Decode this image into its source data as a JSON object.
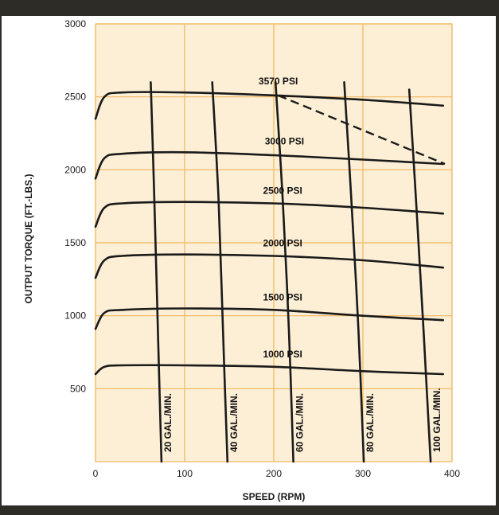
{
  "chart_data": {
    "type": "line",
    "title": "",
    "xlabel": "SPEED (RPM)",
    "ylabel": "OUTPUT TORQUE (FT.-LBS.)",
    "xlim": [
      0,
      400
    ],
    "ylim": [
      0,
      3000
    ],
    "x_ticks": [
      0,
      100,
      200,
      300,
      400
    ],
    "y_ticks": [
      500,
      1000,
      1500,
      2000,
      2500,
      3000
    ],
    "grid": true,
    "colors": {
      "plot_bg": "#fcefd6",
      "grid": "#f0b75e",
      "curve": "#1a1a1a",
      "frame_bg": "#2e2c26"
    },
    "pressure_series": [
      {
        "name": "3570 PSI",
        "x": [
          0,
          10,
          30,
          100,
          200,
          300,
          390
        ],
        "y": [
          2350,
          2500,
          2530,
          2530,
          2510,
          2480,
          2440
        ]
      },
      {
        "name": "3000 PSI",
        "x": [
          0,
          10,
          30,
          100,
          200,
          300,
          390
        ],
        "y": [
          1940,
          2080,
          2110,
          2120,
          2100,
          2070,
          2040
        ]
      },
      {
        "name": "2500 PSI",
        "x": [
          0,
          10,
          30,
          100,
          200,
          300,
          390
        ],
        "y": [
          1610,
          1740,
          1770,
          1780,
          1770,
          1740,
          1700
        ]
      },
      {
        "name": "2000 PSI",
        "x": [
          0,
          10,
          30,
          100,
          200,
          300,
          390
        ],
        "y": [
          1260,
          1380,
          1410,
          1420,
          1410,
          1380,
          1330
        ]
      },
      {
        "name": "1500 PSI",
        "x": [
          0,
          10,
          30,
          100,
          200,
          300,
          390
        ],
        "y": [
          910,
          1020,
          1040,
          1050,
          1040,
          1000,
          970
        ]
      },
      {
        "name": "1000 PSI",
        "x": [
          0,
          10,
          30,
          100,
          200,
          300,
          390
        ],
        "y": [
          600,
          650,
          660,
          660,
          650,
          620,
          600
        ]
      }
    ],
    "flow_series": [
      {
        "name": "20 GAL./MIN.",
        "x": [
          62,
          66,
          70,
          74
        ],
        "y": [
          2600,
          1800,
          900,
          0
        ]
      },
      {
        "name": "40 GAL./MIN.",
        "x": [
          131,
          138,
          143,
          148
        ],
        "y": [
          2600,
          1800,
          900,
          0
        ]
      },
      {
        "name": "60 GAL./MIN.",
        "x": [
          202,
          210,
          217,
          222
        ],
        "y": [
          2600,
          1800,
          900,
          0
        ]
      },
      {
        "name": "80 GAL./MIN.",
        "x": [
          279,
          287,
          295,
          301
        ],
        "y": [
          2600,
          1800,
          900,
          0
        ]
      },
      {
        "name": "100 GAL./MIN.",
        "x": [
          352,
          360,
          368,
          376
        ],
        "y": [
          2550,
          1750,
          900,
          0
        ]
      }
    ],
    "limit_line": {
      "x": [
        205,
        392
      ],
      "y": [
        2510,
        2040
      ],
      "style": "dashed"
    }
  }
}
